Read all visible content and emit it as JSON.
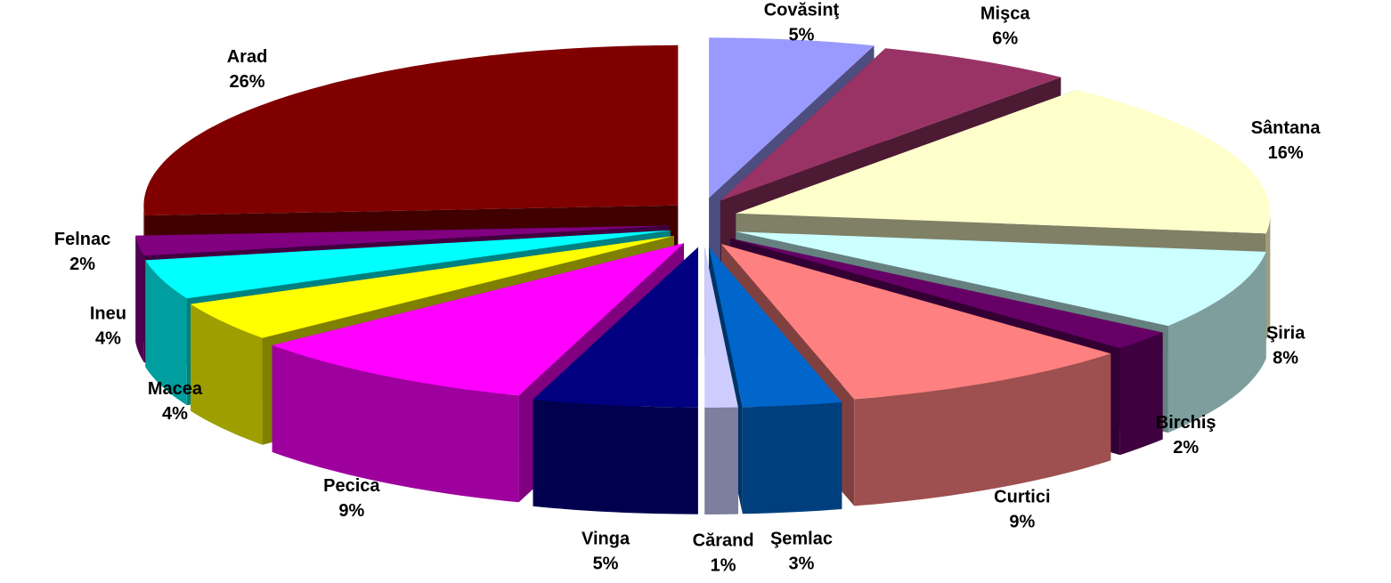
{
  "chart_data": {
    "type": "pie3d",
    "categories": [
      "Covăsinţ",
      "Mişca",
      "Sântana",
      "Şiria",
      "Birchiş",
      "Curtici",
      "Şemlac",
      "Cărand",
      "Vinga",
      "Pecica",
      "Macea",
      "Ineu",
      "Felnac",
      "Arad"
    ],
    "values": [
      5,
      6,
      16,
      8,
      2,
      9,
      3,
      1,
      5,
      9,
      4,
      4,
      2,
      26
    ],
    "value_labels": [
      "5%",
      "6%",
      "16%",
      "8%",
      "2%",
      "9%",
      "3%",
      "1%",
      "5%",
      "9%",
      "4%",
      "4%",
      "2%",
      "26%"
    ],
    "colors": [
      "#9999ff",
      "#993366",
      "#ffffcc",
      "#ccffff",
      "#660066",
      "#ff8080",
      "#0066cc",
      "#ccccff",
      "#000080",
      "#ff00ff",
      "#ffff00",
      "#00ffff",
      "#800080",
      "#800000"
    ]
  }
}
